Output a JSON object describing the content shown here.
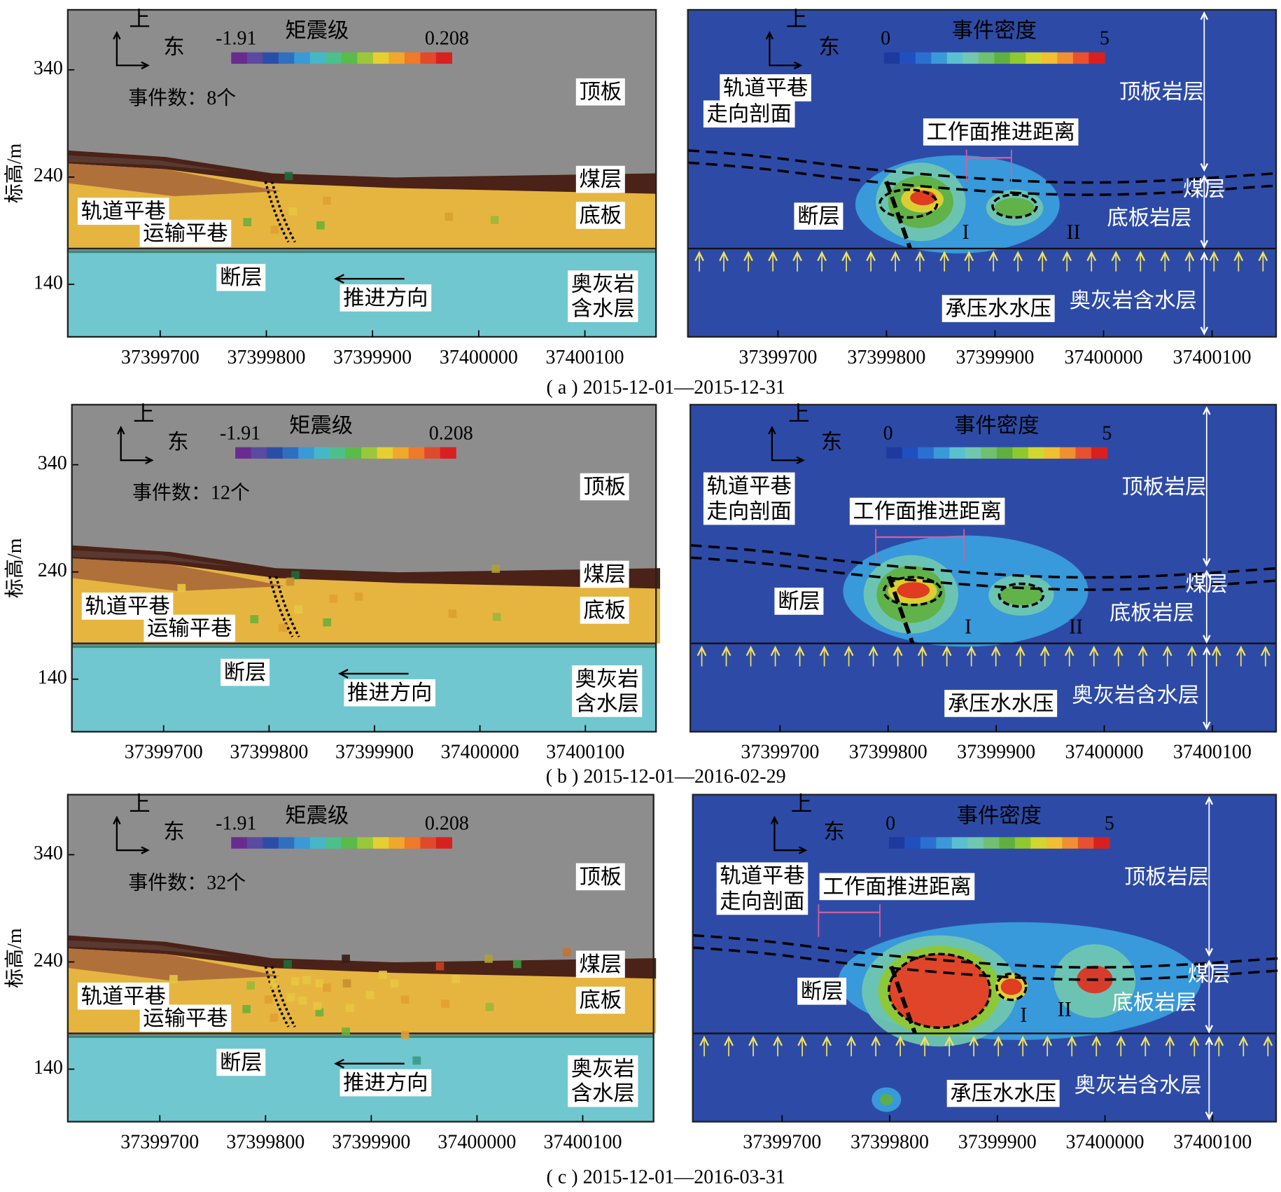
{
  "chart_data": [
    {
      "type": "scatter",
      "ylabel": "标高/m",
      "xlim": [
        37399613,
        37400167
      ],
      "ylim": [
        91,
        396
      ],
      "xticks": [
        37399700,
        37399800,
        37399900,
        37400000,
        37400100
      ],
      "yticks": [
        140,
        240,
        340
      ],
      "colorbar": {
        "title": "矩震级",
        "min": -1.91,
        "max": 0.208
      },
      "event_count": "事件数：8个",
      "annotations": [
        "上",
        "东",
        "顶板",
        "煤层",
        "底板",
        "轨道平巷",
        "运输平巷",
        "断层",
        "推进方向",
        "奥灰岩",
        "含水层"
      ],
      "x": [
        37399821,
        37399782,
        37399808,
        37399825,
        37399851,
        37399857,
        37399972,
        37400015
      ],
      "y": [
        241,
        198,
        191,
        208,
        195,
        218,
        203,
        200
      ],
      "colors": [
        "#1f6b3a",
        "#6ab03a",
        "#e0a030",
        "#e6c840",
        "#6ab03a",
        "#e0a030",
        "#d8a030",
        "#9ab83a"
      ]
    },
    {
      "type": "heatmap",
      "xlim": [
        37399617,
        37400159
      ],
      "xticks": [
        37399700,
        37399800,
        37399900,
        37400000,
        37400100
      ],
      "colorbar": {
        "title": "事件密度",
        "min": 0,
        "max": 5
      },
      "annotations": [
        "上",
        "东",
        "轨道平巷",
        "走向剖面",
        "工作面推进距离",
        "顶板岩层",
        "煤层",
        "底板岩层",
        "承压水水压",
        "奥灰岩含水层",
        "断层",
        "I",
        "II"
      ]
    },
    {
      "type": "scatter",
      "ylabel": "标高/m",
      "xlim": [
        37399613,
        37400167
      ],
      "ylim": [
        91,
        396
      ],
      "xticks": [
        37399700,
        37399800,
        37399900,
        37400000,
        37400100
      ],
      "yticks": [
        140,
        240,
        340
      ],
      "colorbar": {
        "title": "矩震级",
        "min": -1.91,
        "max": 0.208
      },
      "event_count": "事件数：12个",
      "annotations": [
        "上",
        "东",
        "顶板",
        "煤层",
        "底板",
        "轨道平巷",
        "运输平巷",
        "断层",
        "推进方向",
        "奥灰岩",
        "含水层"
      ],
      "x": [
        37399717,
        37399825,
        37399786,
        37399813,
        37399828,
        37399855,
        37399861,
        37399885,
        37399974,
        37400016,
        37400015,
        37399820
      ],
      "y": [
        225,
        237,
        196,
        188,
        205,
        193,
        215,
        217,
        201,
        198,
        243,
        231
      ],
      "colors": [
        "#e6c840",
        "#1f6b3a",
        "#6ab03a",
        "#e0a030",
        "#e6c840",
        "#6ab03a",
        "#e0a030",
        "#e0a030",
        "#d8a030",
        "#9ab83a",
        "#b0a030",
        "#c89030"
      ]
    },
    {
      "type": "heatmap",
      "xlim": [
        37399617,
        37400159
      ],
      "xticks": [
        37399700,
        37399800,
        37399900,
        37400000,
        37400100
      ],
      "colorbar": {
        "title": "事件密度",
        "min": 0,
        "max": 5
      },
      "annotations": [
        "上",
        "东",
        "轨道平巷",
        "走向剖面",
        "工作面推进距离",
        "顶板岩层",
        "煤层",
        "底板岩层",
        "承压水水压",
        "奥灰岩含水层",
        "断层",
        "I",
        "II"
      ]
    },
    {
      "type": "scatter",
      "ylabel": "标高/m",
      "xlim": [
        37399613,
        37400167
      ],
      "ylim": [
        91,
        396
      ],
      "xticks": [
        37399700,
        37399800,
        37399900,
        37400000,
        37400100
      ],
      "yticks": [
        140,
        240,
        340
      ],
      "colorbar": {
        "title": "矩震级",
        "min": -1.91,
        "max": 0.208
      },
      "event_count": "事件数：32个",
      "annotations": [
        "上",
        "东",
        "顶板",
        "煤层",
        "底板",
        "轨道平巷",
        "运输平巷",
        "断层",
        "推进方向",
        "奥灰岩",
        "含水层"
      ],
      "x": [
        37399713,
        37399821,
        37399876,
        37399965,
        37400011,
        37400038,
        37400085,
        37399786,
        37399808,
        37399824,
        37399835,
        37399839,
        37399851,
        37399858,
        37399877,
        37399922,
        37399932,
        37399970,
        37400012,
        37399782,
        37399808,
        37399851,
        37399876,
        37399932,
        37399943,
        37399828,
        37399849,
        37399803,
        37399899,
        37399980,
        37399911,
        37399880
      ],
      "y": [
        224,
        238,
        243,
        236,
        243,
        238,
        249,
        218,
        220,
        207,
        204,
        223,
        220,
        216,
        220,
        220,
        205,
        201,
        198,
        196,
        188,
        193,
        175,
        172,
        148,
        222,
        199,
        205,
        209,
        224,
        228,
        197
      ],
      "colors": [
        "#e6c840",
        "#1f6b3a",
        "#3a1a10",
        "#c84020",
        "#b0a030",
        "#3a9a40",
        "#c87030",
        "#9ab83a",
        "#e6c840",
        "#e6c840",
        "#e6c840",
        "#e6c840",
        "#e6c840",
        "#e0a030",
        "#c89030",
        "#e6c840",
        "#e0a030",
        "#e0a030",
        "#9ab83a",
        "#6ab03a",
        "#e0a030",
        "#6ab03a",
        "#6ab03a",
        "#e0a030",
        "#3a9a80",
        "#e6c840",
        "#e6c840",
        "#e0a030",
        "#e6c840",
        "#e6c840",
        "#e6c840",
        "#e6c840"
      ]
    },
    {
      "type": "heatmap",
      "xlim": [
        37399617,
        37400159
      ],
      "xticks": [
        37399700,
        37399800,
        37399900,
        37400000,
        37400100
      ],
      "colorbar": {
        "title": "事件密度",
        "min": 0,
        "max": 5
      },
      "annotations": [
        "上",
        "东",
        "轨道平巷",
        "走向剖面",
        "工作面推进距离",
        "顶板岩层",
        "煤层",
        "底板岩层",
        "承压水水压",
        "奥灰岩含水层",
        "断层",
        "I",
        "II"
      ]
    }
  ],
  "captions": [
    "( a ) 2015-12-01—2015-12-31",
    "( b ) 2015-12-01—2016-02-29",
    "( c ) 2015-12-01—2016-03-31"
  ]
}
